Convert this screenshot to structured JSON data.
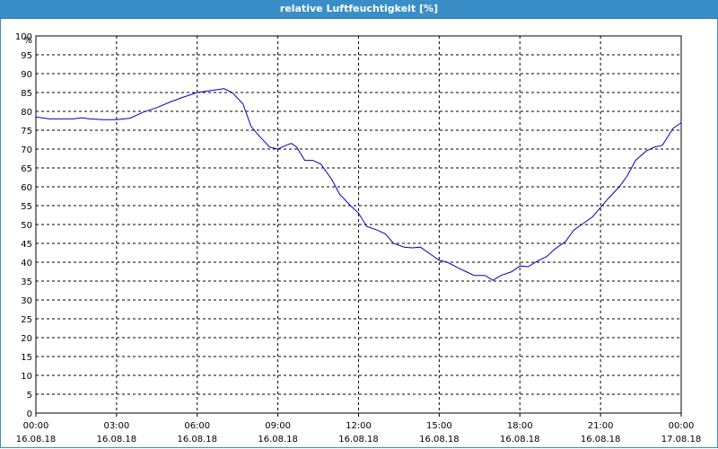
{
  "window": {
    "title": "relative Luftfeuchtigkeit [%]"
  },
  "colors": {
    "titlebar": "#3a8ec8",
    "line": "#0000c0",
    "grid": "#000000"
  },
  "chart_data": {
    "type": "line",
    "title": "relative Luftfeuchtigkeit [%]",
    "ylabel": "%",
    "ylim": [
      0,
      100
    ],
    "yticks": [
      0,
      5,
      10,
      15,
      20,
      25,
      30,
      35,
      40,
      45,
      50,
      55,
      60,
      65,
      70,
      75,
      80,
      85,
      90,
      95,
      100
    ],
    "xlim": [
      0,
      24
    ],
    "xticks": [
      {
        "hour": 0,
        "time": "00:00",
        "date": "16.08.18"
      },
      {
        "hour": 3,
        "time": "03:00",
        "date": "16.08.18"
      },
      {
        "hour": 6,
        "time": "06:00",
        "date": "16.08.18"
      },
      {
        "hour": 9,
        "time": "09:00",
        "date": "16.08.18"
      },
      {
        "hour": 12,
        "time": "12:00",
        "date": "16.08.18"
      },
      {
        "hour": 15,
        "time": "15:00",
        "date": "16.08.18"
      },
      {
        "hour": 18,
        "time": "18:00",
        "date": "16.08.18"
      },
      {
        "hour": 21,
        "time": "21:00",
        "date": "16.08.18"
      },
      {
        "hour": 24,
        "time": "00:00",
        "date": "17.08.18"
      }
    ],
    "grid": true,
    "series": [
      {
        "x": [
          0,
          0.5,
          1,
          1.4,
          1.7,
          2,
          2.5,
          3,
          3.5,
          4,
          4.5,
          5,
          5.5,
          6,
          6.5,
          7,
          7.3,
          7.7,
          8,
          8.3,
          8.7,
          9,
          9.3,
          9.5,
          9.7,
          10,
          10.3,
          10.6,
          11,
          11.3,
          11.7,
          12,
          12.3,
          12.7,
          13,
          13.3,
          13.7,
          14,
          14.3,
          14.7,
          15,
          15.3,
          15.7,
          16,
          16.3,
          16.7,
          17,
          17.3,
          17.7,
          18,
          18.3,
          18.7,
          19,
          19.3,
          19.7,
          20,
          20.3,
          20.7,
          21,
          21.3,
          21.7,
          22,
          22.3,
          22.7,
          23,
          23.3,
          23.7,
          24
        ],
        "y": [
          78.5,
          78,
          78,
          78,
          78.3,
          78,
          77.8,
          77.8,
          78.2,
          79.8,
          81,
          82.5,
          83.8,
          85,
          85.5,
          86,
          85,
          82,
          76,
          73.5,
          70.5,
          70,
          71,
          71.5,
          70.5,
          67,
          67,
          66,
          62,
          58,
          55,
          53,
          49.5,
          48.5,
          47.5,
          45,
          44,
          43.8,
          44,
          42,
          40.5,
          40,
          38.5,
          37.5,
          36.5,
          36.5,
          35.2,
          36.5,
          37.5,
          39,
          38.8,
          40.5,
          41.5,
          43.5,
          45.5,
          48.5,
          50,
          52,
          54.5,
          57,
          60,
          63,
          67,
          69.5,
          70.5,
          71,
          75.5,
          77
        ]
      }
    ]
  }
}
